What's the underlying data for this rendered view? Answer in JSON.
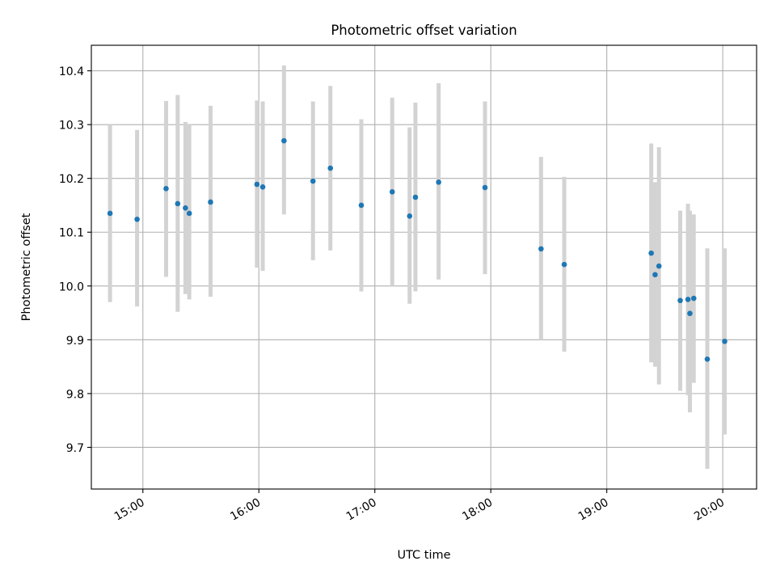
{
  "chart_data": {
    "type": "scatter",
    "title": "Photometric offset variation",
    "xlabel": "UTC time",
    "ylabel": "Photometric offset",
    "x_tick_labels": [
      "15:00",
      "16:00",
      "17:00",
      "18:00",
      "19:00",
      "20:00"
    ],
    "x_tick_hours": [
      15,
      16,
      17,
      18,
      19,
      20
    ],
    "xlim_hours": [
      14.5555,
      20.2919
    ],
    "y_ticks": [
      9.7,
      9.8,
      9.9,
      10.0,
      10.1,
      10.2,
      10.3,
      10.4
    ],
    "y_tick_labels": [
      "9.7",
      "9.8",
      "9.9",
      "10.0",
      "10.1",
      "10.2",
      "10.3",
      "10.4"
    ],
    "ylim": [
      9.6225,
      10.4475
    ],
    "grid": true,
    "errorbar_color": "#d3d3d3",
    "point_color": "#1f77b4",
    "series": [
      {
        "points": [
          {
            "t": "14:43",
            "y": 10.135,
            "yerr_low": 9.97,
            "yerr_high": 10.3
          },
          {
            "t": "14:57",
            "y": 10.124,
            "yerr_low": 9.962,
            "yerr_high": 10.29
          },
          {
            "t": "15:12",
            "y": 10.181,
            "yerr_low": 10.017,
            "yerr_high": 10.344
          },
          {
            "t": "15:18",
            "y": 10.153,
            "yerr_low": 9.952,
            "yerr_high": 10.355
          },
          {
            "t": "15:22",
            "y": 10.145,
            "yerr_low": 9.985,
            "yerr_high": 10.305
          },
          {
            "t": "15:24",
            "y": 10.135,
            "yerr_low": 9.975,
            "yerr_high": 10.3
          },
          {
            "t": "15:35",
            "y": 10.156,
            "yerr_low": 9.98,
            "yerr_high": 10.335
          },
          {
            "t": "15:59",
            "y": 10.189,
            "yerr_low": 10.034,
            "yerr_high": 10.345
          },
          {
            "t": "16:02",
            "y": 10.184,
            "yerr_low": 10.028,
            "yerr_high": 10.343
          },
          {
            "t": "16:13",
            "y": 10.27,
            "yerr_low": 10.133,
            "yerr_high": 10.41
          },
          {
            "t": "16:28",
            "y": 10.195,
            "yerr_low": 10.048,
            "yerr_high": 10.343
          },
          {
            "t": "16:37",
            "y": 10.219,
            "yerr_low": 10.066,
            "yerr_high": 10.372
          },
          {
            "t": "16:53",
            "y": 10.15,
            "yerr_low": 9.99,
            "yerr_high": 10.31
          },
          {
            "t": "17:09",
            "y": 10.175,
            "yerr_low": 10.0,
            "yerr_high": 10.35
          },
          {
            "t": "17:18",
            "y": 10.13,
            "yerr_low": 9.967,
            "yerr_high": 10.295
          },
          {
            "t": "17:21",
            "y": 10.165,
            "yerr_low": 9.99,
            "yerr_high": 10.341
          },
          {
            "t": "17:33",
            "y": 10.193,
            "yerr_low": 10.012,
            "yerr_high": 10.377
          },
          {
            "t": "17:57",
            "y": 10.183,
            "yerr_low": 10.022,
            "yerr_high": 10.343
          },
          {
            "t": "18:26",
            "y": 10.069,
            "yerr_low": 9.9,
            "yerr_high": 10.24
          },
          {
            "t": "18:38",
            "y": 10.04,
            "yerr_low": 9.878,
            "yerr_high": 10.203
          },
          {
            "t": "19:23",
            "y": 10.061,
            "yerr_low": 9.858,
            "yerr_high": 10.265
          },
          {
            "t": "19:25",
            "y": 10.021,
            "yerr_low": 9.85,
            "yerr_high": 10.193
          },
          {
            "t": "19:27",
            "y": 10.037,
            "yerr_low": 9.817,
            "yerr_high": 10.258
          },
          {
            "t": "19:38",
            "y": 9.973,
            "yerr_low": 9.805,
            "yerr_high": 10.14
          },
          {
            "t": "19:42",
            "y": 9.975,
            "yerr_low": 9.797,
            "yerr_high": 10.153
          },
          {
            "t": "19:43",
            "y": 9.949,
            "yerr_low": 9.765,
            "yerr_high": 10.14
          },
          {
            "t": "19:45",
            "y": 9.977,
            "yerr_low": 9.82,
            "yerr_high": 10.133
          },
          {
            "t": "19:52",
            "y": 9.864,
            "yerr_low": 9.66,
            "yerr_high": 10.07
          },
          {
            "t": "20:01",
            "y": 9.897,
            "yerr_low": 9.724,
            "yerr_high": 10.07
          }
        ]
      }
    ]
  }
}
